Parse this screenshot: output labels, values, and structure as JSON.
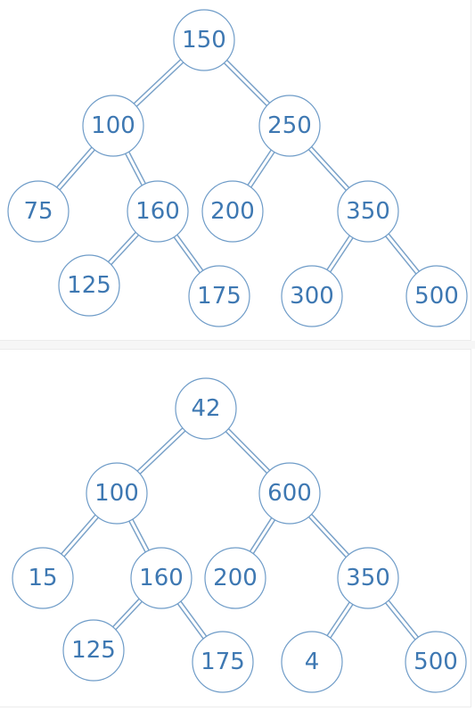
{
  "trees": [
    {
      "name": "tree-top",
      "nodes": [
        {
          "id": "n150",
          "label": "150"
        },
        {
          "id": "n100",
          "label": "100"
        },
        {
          "id": "n250",
          "label": "250"
        },
        {
          "id": "n75",
          "label": "75"
        },
        {
          "id": "n160",
          "label": "160"
        },
        {
          "id": "n200",
          "label": "200"
        },
        {
          "id": "n350",
          "label": "350"
        },
        {
          "id": "n125",
          "label": "125"
        },
        {
          "id": "n175",
          "label": "175"
        },
        {
          "id": "n300",
          "label": "300"
        },
        {
          "id": "n500",
          "label": "500"
        }
      ],
      "edges": [
        [
          "n150",
          "n100"
        ],
        [
          "n150",
          "n250"
        ],
        [
          "n100",
          "n75"
        ],
        [
          "n100",
          "n160"
        ],
        [
          "n250",
          "n200"
        ],
        [
          "n250",
          "n350"
        ],
        [
          "n160",
          "n125"
        ],
        [
          "n160",
          "n175"
        ],
        [
          "n350",
          "n300"
        ],
        [
          "n350",
          "n500"
        ]
      ]
    },
    {
      "name": "tree-bottom",
      "nodes": [
        {
          "id": "m42",
          "label": "42"
        },
        {
          "id": "m100",
          "label": "100"
        },
        {
          "id": "m600",
          "label": "600"
        },
        {
          "id": "m15",
          "label": "15"
        },
        {
          "id": "m160",
          "label": "160"
        },
        {
          "id": "m200",
          "label": "200"
        },
        {
          "id": "m350",
          "label": "350"
        },
        {
          "id": "m125",
          "label": "125"
        },
        {
          "id": "m175",
          "label": "175"
        },
        {
          "id": "m4",
          "label": "4"
        },
        {
          "id": "m500",
          "label": "500"
        }
      ],
      "edges": [
        [
          "m42",
          "m100"
        ],
        [
          "m42",
          "m600"
        ],
        [
          "m100",
          "m15"
        ],
        [
          "m100",
          "m160"
        ],
        [
          "m600",
          "m200"
        ],
        [
          "m600",
          "m350"
        ],
        [
          "m160",
          "m125"
        ],
        [
          "m160",
          "m175"
        ],
        [
          "m350",
          "m4"
        ],
        [
          "m350",
          "m500"
        ]
      ]
    }
  ],
  "colors": {
    "node_stroke": "#6f9cc8",
    "node_text": "#3e78b2",
    "edge": "#7aa2c9"
  }
}
